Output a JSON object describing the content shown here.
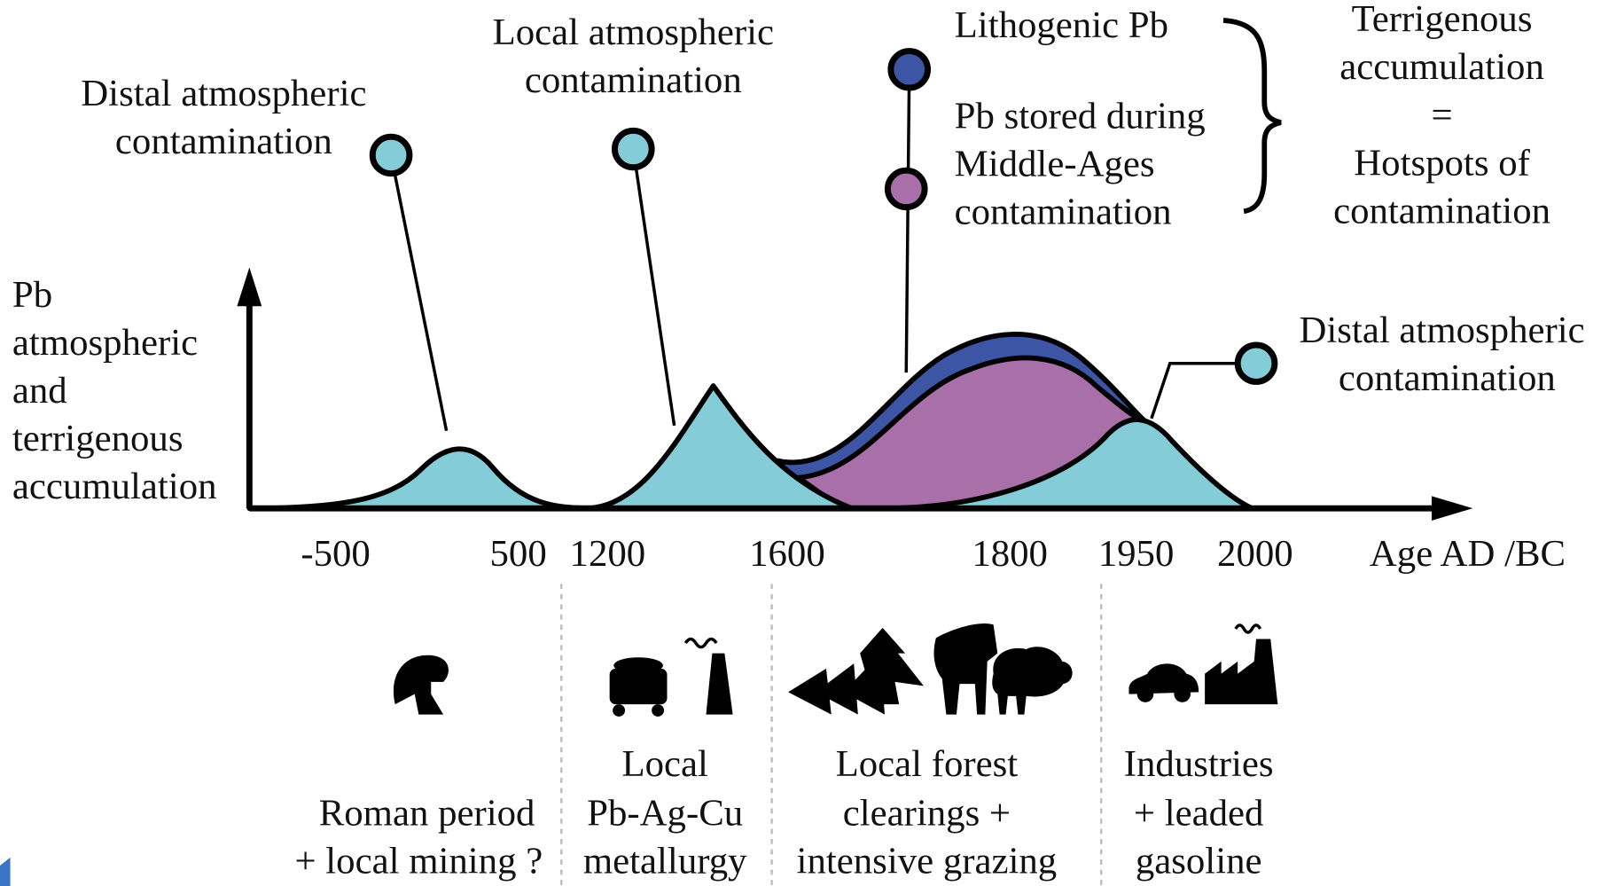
{
  "y_axis_label": [
    "Pb",
    "atmospheric",
    "and",
    "terrigenous",
    "accumulation"
  ],
  "x_axis_label": "Age AD /BC",
  "x_ticks": [
    "-500",
    "500",
    "1200",
    "1600",
    "1800",
    "1950",
    "2000"
  ],
  "callouts": [
    [
      "Distal atmospheric",
      "contamination"
    ],
    [
      "Local atmospheric",
      "contamination"
    ],
    [
      "Distal atmospheric",
      "contamination"
    ]
  ],
  "legend": {
    "items": [
      [
        "Lithogenic Pb"
      ],
      [
        "Pb stored during",
        "Middle-Ages",
        "contamination"
      ]
    ],
    "result": [
      "Terrigenous",
      "accumulation",
      "=",
      "Hotspots of",
      "contamination"
    ]
  },
  "periods": [
    [
      "Roman period",
      "+ local mining ?"
    ],
    [
      "Local",
      "Pb-Ag-Cu",
      "metallurgy"
    ],
    [
      "Local forest",
      "clearings +",
      "intensive grazing"
    ],
    [
      "Industries",
      "+ leaded",
      "gasoline"
    ]
  ]
}
